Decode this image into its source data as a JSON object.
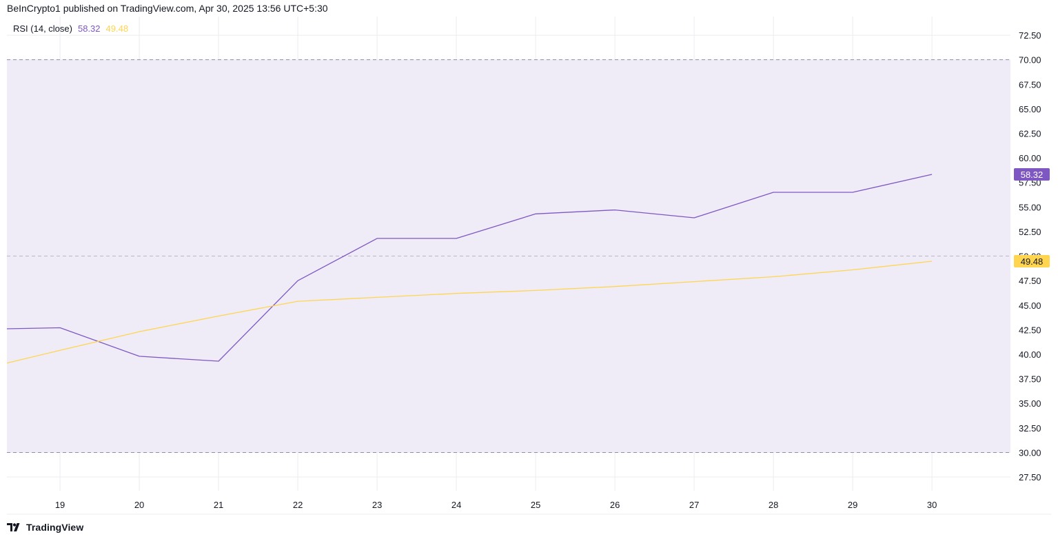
{
  "header": {
    "publish_text": "BeInCrypto1 published on TradingView.com, Apr 30, 2025 13:56 UTC+5:30"
  },
  "legend": {
    "indicator": "RSI (14, close)",
    "value_rsi": "58.32",
    "value_ma": "49.48"
  },
  "footer": {
    "brand": "TradingView"
  },
  "colors": {
    "rsi": "#7e57c2",
    "ma": "#ffd54f",
    "band_fill": "#efecf8",
    "grid": "#ececf1",
    "band_line": "#8f8aa8",
    "mid_line": "#b8b8c0",
    "axis_text": "#131722"
  },
  "chart_data": {
    "type": "line",
    "title": "RSI (14, close)",
    "x": [
      "18.4",
      "19",
      "20",
      "21",
      "22",
      "23",
      "24",
      "25",
      "26",
      "27",
      "28",
      "29",
      "30"
    ],
    "x_ticks": [
      "19",
      "20",
      "21",
      "22",
      "23",
      "24",
      "25",
      "26",
      "27",
      "28",
      "29",
      "30"
    ],
    "y_ticks": [
      "27.50",
      "30.00",
      "32.50",
      "35.00",
      "37.50",
      "40.00",
      "42.50",
      "45.00",
      "47.50",
      "50.00",
      "52.50",
      "55.00",
      "57.50",
      "60.00",
      "62.50",
      "65.00",
      "67.50",
      "70.00",
      "72.50"
    ],
    "ylim": [
      26.1,
      74.4
    ],
    "xlim": [
      18.33,
      30.99
    ],
    "bands": {
      "upper": 70,
      "middle": 50,
      "lower": 30
    },
    "grid": true,
    "series": [
      {
        "role": "rsi",
        "x": [
          18.33,
          19,
          20,
          21,
          22,
          23,
          24,
          25,
          26,
          27,
          28,
          29,
          30
        ],
        "values": [
          42.6,
          42.7,
          39.8,
          39.3,
          47.5,
          51.8,
          51.8,
          54.3,
          54.7,
          53.9,
          56.5,
          56.5,
          58.32
        ],
        "last_label": "58.32"
      },
      {
        "role": "ma",
        "x": [
          18.33,
          19,
          20,
          21,
          22,
          23,
          24,
          25,
          26,
          27,
          28,
          29,
          30
        ],
        "values": [
          39.1,
          40.4,
          42.3,
          43.9,
          45.4,
          45.8,
          46.2,
          46.5,
          46.9,
          47.4,
          47.9,
          48.6,
          49.48
        ],
        "last_label": "49.48"
      }
    ]
  }
}
